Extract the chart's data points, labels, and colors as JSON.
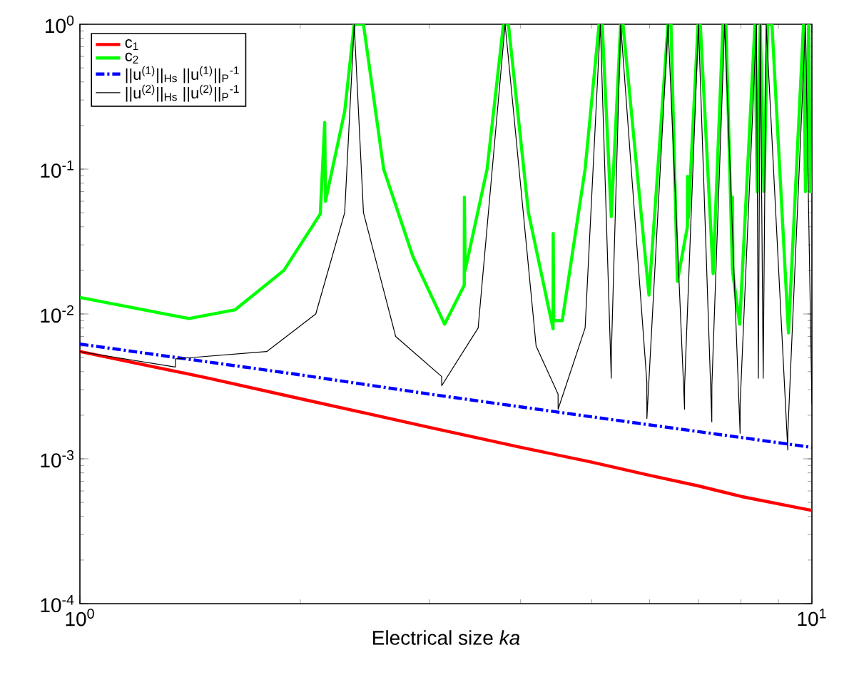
{
  "chart_data": {
    "type": "line",
    "xlabel": "Electrical size *ka*",
    "log": "xy",
    "grid": false,
    "legend": "top left",
    "xlim": [
      1,
      10
    ],
    "ylim": [
      0.0001,
      1
    ],
    "xticks": [
      {
        "value": 1,
        "label": "10$^{0}$"
      },
      {
        "value": 10,
        "label": "10$^{1}$"
      }
    ],
    "yticks": [
      {
        "value": 0.0001,
        "label": "10$^{-4}$"
      },
      {
        "value": 0.001,
        "label": "10$^{-3}$"
      },
      {
        "value": 0.01,
        "label": "10$^{-2}$"
      },
      {
        "value": 0.1,
        "label": "10$^{-1}$"
      },
      {
        "value": 1,
        "label": "10$^{0}$"
      }
    ],
    "series": [
      {
        "name": "c$_{1}$",
        "color": "#ff0000",
        "line_style": "solid",
        "x": [
          1,
          1.5,
          2,
          3,
          4,
          5,
          6,
          7,
          8,
          10
        ],
        "values": [
          0.0055,
          0.0036,
          0.0026,
          0.00165,
          0.0012,
          0.00095,
          0.00077,
          0.00065,
          0.00055,
          0.00044
        ]
      },
      {
        "name": "c$_{2}$",
        "color": "#00ff00",
        "line_style": "solid",
        "x": [
          1,
          1.41,
          1.63,
          1.9,
          2.13,
          2.16,
          2.165,
          2.3,
          2.37,
          2.44,
          2.6,
          2.85,
          3.15,
          3.35,
          3.352,
          3.36,
          3.6,
          3.79,
          3.85,
          4.1,
          4.43,
          4.432,
          4.44,
          4.56,
          4.9,
          5.12,
          5.17,
          5.32,
          5.48,
          5.52,
          5.99,
          6.36,
          6.42,
          6.55,
          6.76,
          6.762,
          6.78,
          6.99,
          7.04,
          7.33,
          7.56,
          7.63,
          7.79,
          7.792,
          7.8,
          7.97,
          8.36,
          8.42,
          8.5,
          8.6,
          8.7,
          8.82,
          9.29,
          9.74,
          9.8,
          9.9,
          9.95,
          10
        ],
        "values": [
          0.013,
          0.0093,
          0.0107,
          0.02,
          0.049,
          0.21,
          0.06,
          0.25,
          1,
          1,
          0.1,
          0.025,
          0.0085,
          0.0158,
          0.064,
          0.02,
          0.1,
          1,
          1,
          0.05,
          0.0079,
          0.036,
          0.009,
          0.009,
          0.1,
          1,
          1,
          0.047,
          1,
          1,
          0.0135,
          1,
          1,
          0.0168,
          0.04,
          0.089,
          0.046,
          1,
          1,
          0.019,
          1,
          1,
          0.02,
          0.064,
          0.019,
          0.0085,
          1,
          0.07,
          1,
          0.07,
          1,
          1,
          0.0074,
          1,
          0.07,
          1,
          0.07,
          0.07
        ]
      },
      {
        "name": "||u$^{(1)}$||$_{Hs}$ ||u$^{(1)}$||$_{P}$$^{-1}$",
        "color": "#0000ff",
        "line_style": "dashdot",
        "x": [
          1,
          2,
          3,
          5,
          10
        ],
        "values": [
          0.0062,
          0.0038,
          0.0028,
          0.00195,
          0.0012
        ]
      },
      {
        "name": "||u$^{(2)}$||$_{Hs}$ ||u$^{(2)}$||$_{P}$$^{-1}$",
        "color": "#000000",
        "line_style": "solid",
        "x": [
          1,
          1.35,
          1.351,
          1.8,
          2.1,
          2.3,
          2.37,
          2.44,
          2.7,
          3.12,
          3.121,
          3.5,
          3.81,
          4.2,
          4.5,
          4.501,
          4.9,
          5.14,
          5.32,
          5.321,
          5.48,
          5.95,
          5.951,
          6.36,
          6.7,
          6.701,
          7.0,
          7.3,
          7.301,
          7.6,
          7.98,
          7.981,
          8.4,
          8.45,
          8.5,
          8.58,
          8.66,
          9.27,
          9.271,
          9.8,
          10
        ],
        "values": [
          0.0055,
          0.0043,
          0.0049,
          0.0055,
          0.01,
          0.05,
          1,
          0.05,
          0.007,
          0.0037,
          0.0032,
          0.008,
          1,
          0.006,
          0.0028,
          0.0022,
          0.008,
          1,
          0.0036,
          0.0053,
          1,
          0.0034,
          0.0019,
          1,
          0.0022,
          0.0032,
          1,
          0.0018,
          0.0032,
          1,
          0.0015,
          0.0024,
          1,
          0.0036,
          1,
          0.0036,
          1,
          0.00115,
          0.0015,
          1,
          0.0024
        ]
      }
    ]
  }
}
